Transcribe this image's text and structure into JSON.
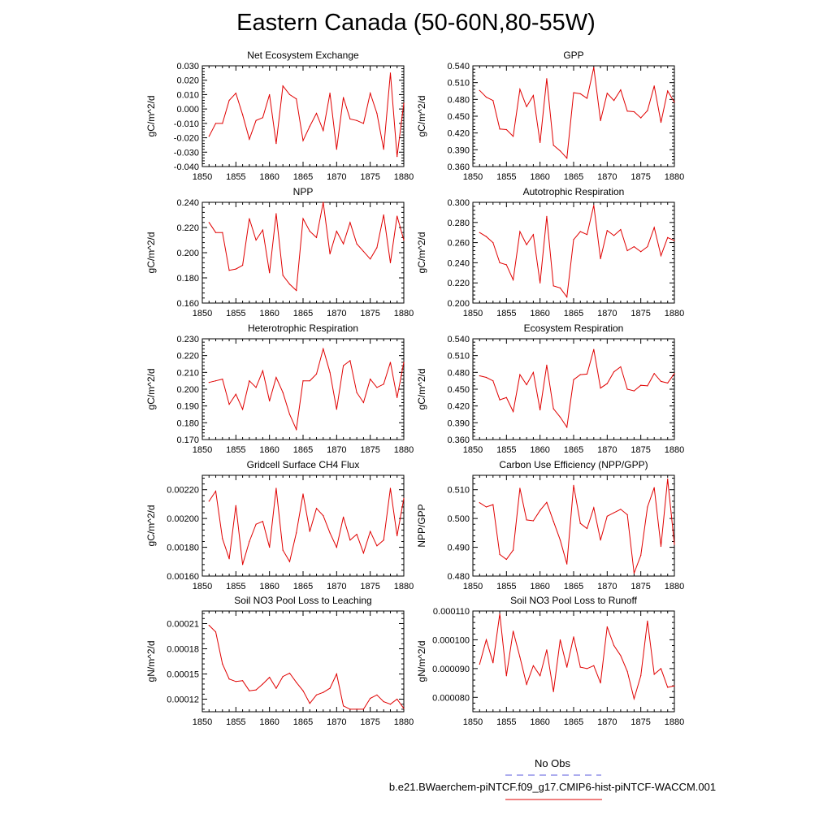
{
  "title": "Eastern Canada (50-60N,80-55W)",
  "legend": {
    "obs_label": "No Obs",
    "obs_color": "#5a5adc",
    "run_label": "b.e21.BWaerchem-piNTCF.f09_g17.CMIP6-hist-piNTCF-WACCM.001",
    "run_color": "#e00000"
  },
  "chart_data": [
    {
      "type": "line",
      "title": "Net Ecosystem Exchange",
      "ylabel": "gC/m^2/d",
      "xlim": [
        1850,
        1880
      ],
      "xticks": [
        1850,
        1855,
        1860,
        1865,
        1870,
        1875,
        1880
      ],
      "ylim": [
        -0.04,
        0.03
      ],
      "yticks": [
        -0.04,
        -0.03,
        -0.02,
        -0.01,
        0.0,
        0.01,
        0.02,
        0.03
      ],
      "ytick_labels": [
        "-0.040",
        "-0.030",
        "-0.020",
        "-0.010",
        "0.000",
        "0.010",
        "0.020",
        "0.030"
      ],
      "x": [
        1851,
        1852,
        1853,
        1854,
        1855,
        1856,
        1857,
        1858,
        1859,
        1860,
        1861,
        1862,
        1863,
        1864,
        1865,
        1866,
        1867,
        1868,
        1869,
        1870,
        1871,
        1872,
        1873,
        1874,
        1875,
        1876,
        1877,
        1878,
        1879,
        1880
      ],
      "values": [
        -0.019,
        -0.01,
        -0.01,
        0.006,
        0.011,
        -0.004,
        -0.021,
        -0.008,
        -0.006,
        0.01,
        -0.024,
        0.016,
        0.01,
        0.007,
        -0.022,
        -0.012,
        -0.003,
        -0.015,
        0.011,
        -0.028,
        0.008,
        -0.007,
        -0.008,
        -0.01,
        0.011,
        -0.003,
        -0.028,
        0.025,
        -0.033,
        0.004
      ]
    },
    {
      "type": "line",
      "title": "GPP",
      "ylabel": "gC/m^2/d",
      "xlim": [
        1850,
        1880
      ],
      "xticks": [
        1850,
        1855,
        1860,
        1865,
        1870,
        1875,
        1880
      ],
      "ylim": [
        0.36,
        0.54
      ],
      "yticks": [
        0.36,
        0.39,
        0.42,
        0.45,
        0.48,
        0.51,
        0.54
      ],
      "ytick_labels": [
        "0.360",
        "0.390",
        "0.420",
        "0.450",
        "0.480",
        "0.510",
        "0.540"
      ],
      "x": [
        1851,
        1852,
        1853,
        1854,
        1855,
        1856,
        1857,
        1858,
        1859,
        1860,
        1861,
        1862,
        1863,
        1864,
        1865,
        1866,
        1867,
        1868,
        1869,
        1870,
        1871,
        1872,
        1873,
        1874,
        1875,
        1876,
        1877,
        1878,
        1879,
        1880
      ],
      "values": [
        0.496,
        0.484,
        0.478,
        0.427,
        0.426,
        0.414,
        0.498,
        0.467,
        0.487,
        0.403,
        0.517,
        0.398,
        0.388,
        0.375,
        0.492,
        0.49,
        0.482,
        0.537,
        0.442,
        0.491,
        0.478,
        0.497,
        0.459,
        0.458,
        0.447,
        0.46,
        0.504,
        0.439,
        0.495,
        0.475
      ]
    },
    {
      "type": "line",
      "title": "NPP",
      "ylabel": "gC/m^2/d",
      "xlim": [
        1850,
        1880
      ],
      "xticks": [
        1850,
        1855,
        1860,
        1865,
        1870,
        1875,
        1880
      ],
      "ylim": [
        0.16,
        0.24
      ],
      "yticks": [
        0.16,
        0.18,
        0.2,
        0.22,
        0.24
      ],
      "ytick_labels": [
        "0.160",
        "0.180",
        "0.200",
        "0.220",
        "0.240"
      ],
      "x": [
        1851,
        1852,
        1853,
        1854,
        1855,
        1856,
        1857,
        1858,
        1859,
        1860,
        1861,
        1862,
        1863,
        1864,
        1865,
        1866,
        1867,
        1868,
        1869,
        1870,
        1871,
        1872,
        1873,
        1874,
        1875,
        1876,
        1877,
        1878,
        1879,
        1880
      ],
      "values": [
        0.224,
        0.216,
        0.216,
        0.186,
        0.187,
        0.19,
        0.227,
        0.21,
        0.218,
        0.184,
        0.231,
        0.182,
        0.175,
        0.17,
        0.227,
        0.217,
        0.212,
        0.24,
        0.199,
        0.217,
        0.207,
        0.224,
        0.207,
        0.201,
        0.195,
        0.204,
        0.23,
        0.192,
        0.229,
        0.21
      ]
    },
    {
      "type": "line",
      "title": "Autotrophic Respiration",
      "ylabel": "gC/m^2/d",
      "xlim": [
        1850,
        1880
      ],
      "xticks": [
        1850,
        1855,
        1860,
        1865,
        1870,
        1875,
        1880
      ],
      "ylim": [
        0.2,
        0.3
      ],
      "yticks": [
        0.2,
        0.22,
        0.24,
        0.26,
        0.28,
        0.3
      ],
      "ytick_labels": [
        "0.200",
        "0.220",
        "0.240",
        "0.260",
        "0.280",
        "0.300"
      ],
      "x": [
        1851,
        1852,
        1853,
        1854,
        1855,
        1856,
        1857,
        1858,
        1859,
        1860,
        1861,
        1862,
        1863,
        1864,
        1865,
        1866,
        1867,
        1868,
        1869,
        1870,
        1871,
        1872,
        1873,
        1874,
        1875,
        1876,
        1877,
        1878,
        1879,
        1880
      ],
      "values": [
        0.27,
        0.266,
        0.26,
        0.24,
        0.238,
        0.223,
        0.271,
        0.258,
        0.268,
        0.22,
        0.286,
        0.217,
        0.215,
        0.206,
        0.263,
        0.271,
        0.268,
        0.297,
        0.244,
        0.272,
        0.267,
        0.273,
        0.252,
        0.256,
        0.251,
        0.256,
        0.275,
        0.247,
        0.265,
        0.262
      ]
    },
    {
      "type": "line",
      "title": "Heterotrophic Respiration",
      "ylabel": "gC/m^2/d",
      "xlim": [
        1850,
        1880
      ],
      "xticks": [
        1850,
        1855,
        1860,
        1865,
        1870,
        1875,
        1880
      ],
      "ylim": [
        0.17,
        0.23
      ],
      "yticks": [
        0.17,
        0.18,
        0.19,
        0.2,
        0.21,
        0.22,
        0.23
      ],
      "ytick_labels": [
        "0.170",
        "0.180",
        "0.190",
        "0.200",
        "0.210",
        "0.220",
        "0.230"
      ],
      "x": [
        1851,
        1852,
        1853,
        1854,
        1855,
        1856,
        1857,
        1858,
        1859,
        1860,
        1861,
        1862,
        1863,
        1864,
        1865,
        1866,
        1867,
        1868,
        1869,
        1870,
        1871,
        1872,
        1873,
        1874,
        1875,
        1876,
        1877,
        1878,
        1879,
        1880
      ],
      "values": [
        0.204,
        0.205,
        0.206,
        0.191,
        0.197,
        0.188,
        0.205,
        0.201,
        0.211,
        0.193,
        0.207,
        0.198,
        0.185,
        0.176,
        0.205,
        0.205,
        0.209,
        0.224,
        0.21,
        0.188,
        0.214,
        0.217,
        0.198,
        0.192,
        0.206,
        0.201,
        0.203,
        0.216,
        0.195,
        0.216
      ]
    },
    {
      "type": "line",
      "title": "Ecosystem Respiration",
      "ylabel": "gC/m^2/d",
      "xlim": [
        1850,
        1880
      ],
      "xticks": [
        1850,
        1855,
        1860,
        1865,
        1870,
        1875,
        1880
      ],
      "ylim": [
        0.36,
        0.54
      ],
      "yticks": [
        0.36,
        0.39,
        0.42,
        0.45,
        0.48,
        0.51,
        0.54
      ],
      "ytick_labels": [
        "0.360",
        "0.390",
        "0.420",
        "0.450",
        "0.480",
        "0.510",
        "0.540"
      ],
      "x": [
        1851,
        1852,
        1853,
        1854,
        1855,
        1856,
        1857,
        1858,
        1859,
        1860,
        1861,
        1862,
        1863,
        1864,
        1865,
        1866,
        1867,
        1868,
        1869,
        1870,
        1871,
        1872,
        1873,
        1874,
        1875,
        1876,
        1877,
        1878,
        1879,
        1880
      ],
      "values": [
        0.474,
        0.471,
        0.465,
        0.431,
        0.435,
        0.41,
        0.476,
        0.458,
        0.48,
        0.413,
        0.493,
        0.415,
        0.4,
        0.382,
        0.467,
        0.476,
        0.477,
        0.521,
        0.452,
        0.46,
        0.481,
        0.49,
        0.45,
        0.447,
        0.457,
        0.456,
        0.478,
        0.464,
        0.461,
        0.478
      ]
    },
    {
      "type": "line",
      "title": "Gridcell Surface CH4 Flux",
      "ylabel": "gC/m^2/d",
      "xlim": [
        1850,
        1880
      ],
      "xticks": [
        1850,
        1855,
        1860,
        1865,
        1870,
        1875,
        1880
      ],
      "ylim": [
        0.0016,
        0.0023
      ],
      "yticks": [
        0.0016,
        0.0018,
        0.002,
        0.0022
      ],
      "ytick_labels": [
        "0.00160",
        "0.00180",
        "0.00200",
        "0.00220"
      ],
      "x": [
        1851,
        1852,
        1853,
        1854,
        1855,
        1856,
        1857,
        1858,
        1859,
        1860,
        1861,
        1862,
        1863,
        1864,
        1865,
        1866,
        1867,
        1868,
        1869,
        1870,
        1871,
        1872,
        1873,
        1874,
        1875,
        1876,
        1877,
        1878,
        1879,
        1880
      ],
      "values": [
        0.00212,
        0.00219,
        0.00186,
        0.00172,
        0.00209,
        0.00168,
        0.00184,
        0.00196,
        0.00198,
        0.0018,
        0.00221,
        0.00178,
        0.0017,
        0.0019,
        0.00217,
        0.00191,
        0.00207,
        0.00202,
        0.0019,
        0.0018,
        0.00201,
        0.00185,
        0.00189,
        0.00176,
        0.00191,
        0.00181,
        0.00185,
        0.00221,
        0.00188,
        0.00214
      ]
    },
    {
      "type": "line",
      "title": "Carbon Use Efficiency (NPP/GPP)",
      "ylabel": "NPP/GPP",
      "xlim": [
        1850,
        1880
      ],
      "xticks": [
        1850,
        1855,
        1860,
        1865,
        1870,
        1875,
        1880
      ],
      "ylim": [
        0.48,
        0.515
      ],
      "yticks": [
        0.48,
        0.49,
        0.5,
        0.51
      ],
      "ytick_labels": [
        "0.480",
        "0.490",
        "0.500",
        "0.510"
      ],
      "x": [
        1851,
        1852,
        1853,
        1854,
        1855,
        1856,
        1857,
        1858,
        1859,
        1860,
        1861,
        1862,
        1863,
        1864,
        1865,
        1866,
        1867,
        1868,
        1869,
        1870,
        1871,
        1872,
        1873,
        1874,
        1875,
        1876,
        1877,
        1878,
        1879,
        1880
      ],
      "values": [
        0.5055,
        0.504,
        0.5048,
        0.4875,
        0.4858,
        0.489,
        0.5105,
        0.4995,
        0.4992,
        0.5028,
        0.5056,
        0.499,
        0.4925,
        0.4842,
        0.5115,
        0.4983,
        0.4965,
        0.5037,
        0.4925,
        0.5008,
        0.502,
        0.5032,
        0.5013,
        0.481,
        0.4872,
        0.504,
        0.5107,
        0.4903,
        0.5137,
        0.491
      ]
    },
    {
      "type": "line",
      "title": "Soil NO3 Pool Loss to Leaching",
      "ylabel": "gN/m^2/d",
      "xlim": [
        1850,
        1880
      ],
      "xticks": [
        1850,
        1855,
        1860,
        1865,
        1870,
        1875,
        1880
      ],
      "ylim": [
        0.000105,
        0.000225
      ],
      "yticks": [
        0.00012,
        0.00015,
        0.00018,
        0.00021
      ],
      "ytick_labels": [
        "0.00012",
        "0.00015",
        "0.00018",
        "0.00021"
      ],
      "x": [
        1851,
        1852,
        1853,
        1854,
        1855,
        1856,
        1857,
        1858,
        1859,
        1860,
        1861,
        1862,
        1863,
        1864,
        1865,
        1866,
        1867,
        1868,
        1869,
        1870,
        1871,
        1872,
        1873,
        1874,
        1875,
        1876,
        1877,
        1878,
        1879,
        1880
      ],
      "values": [
        0.000208,
        0.0002,
        0.000162,
        0.000144,
        0.000141,
        0.000142,
        0.00013,
        0.000131,
        0.000138,
        0.000146,
        0.000133,
        0.000147,
        0.000151,
        0.00014,
        0.00013,
        0.000115,
        0.000125,
        0.000128,
        0.000133,
        0.00015,
        0.000112,
        0.000108,
        0.000108,
        0.000108,
        0.000121,
        0.000125,
        0.000117,
        0.000114,
        0.00012,
        0.000109
      ]
    },
    {
      "type": "line",
      "title": "Soil NO3 Pool Loss to Runoff",
      "ylabel": "gN/m^2/d",
      "xlim": [
        1850,
        1880
      ],
      "xticks": [
        1850,
        1855,
        1860,
        1865,
        1870,
        1875,
        1880
      ],
      "ylim": [
        7.5e-05,
        0.00011
      ],
      "yticks": [
        8e-05,
        9e-05,
        0.0001,
        0.00011
      ],
      "ytick_labels": [
        "0.000080",
        "0.000090",
        "0.000100",
        "0.000110"
      ],
      "x": [
        1851,
        1852,
        1853,
        1854,
        1855,
        1856,
        1857,
        1858,
        1859,
        1860,
        1861,
        1862,
        1863,
        1864,
        1865,
        1866,
        1867,
        1868,
        1869,
        1870,
        1871,
        1872,
        1873,
        1874,
        1875,
        1876,
        1877,
        1878,
        1879,
        1880
      ],
      "values": [
        9.15e-05,
        0.0001,
        9.2e-05,
        0.000109,
        8.75e-05,
        0.000103,
        9.4e-05,
        8.45e-05,
        9.1e-05,
        8.75e-05,
        9.65e-05,
        8.2e-05,
        0.0001,
        9.05e-05,
        0.000101,
        9.05e-05,
        9e-05,
        9.1e-05,
        8.5e-05,
        0.0001045,
        9.8e-05,
        9.45e-05,
        8.9e-05,
        7.95e-05,
        8.75e-05,
        0.0001065,
        8.8e-05,
        9e-05,
        8.35e-05,
        8.4e-05
      ]
    }
  ]
}
